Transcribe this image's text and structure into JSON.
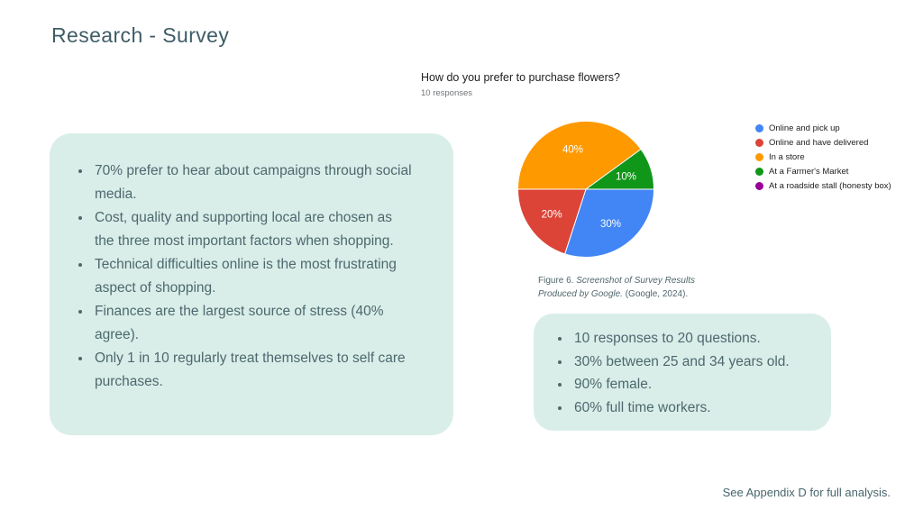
{
  "slide": {
    "title": "Research - Survey",
    "footer": "See Appendix D for full analysis."
  },
  "chart": {
    "title": "How do you prefer to purchase flowers?",
    "subtitle": "10 responses",
    "caption_prefix": "Figure 6. ",
    "caption_italic": "Screenshot of Survey Results Produced by Google.",
    "caption_suffix": " (Google, 2024)."
  },
  "chart_data": {
    "type": "pie",
    "title": "How do you prefer to purchase flowers?",
    "subtitle": "10 responses",
    "labels": [
      "Online and pick up",
      "Online and have delivered",
      "In a store",
      "At a Farmer's Market",
      "At a roadside stall (honesty box)"
    ],
    "values": [
      30,
      20,
      40,
      10,
      0
    ],
    "slice_labels": [
      "30%",
      "20%",
      "40%",
      "10%",
      ""
    ],
    "colors": [
      "#4285f4",
      "#db4437",
      "#ff9900",
      "#109618",
      "#990099"
    ],
    "start_angle_deg": 90,
    "direction": "clockwise",
    "legend_position": "right"
  },
  "left_box": {
    "bullets": [
      "70% prefer to hear about campaigns through social media.",
      "Cost, quality and supporting local are chosen as the three most important factors when shopping.",
      "Technical difficulties online is the most frustrating aspect of shopping.",
      "Finances are the largest source of stress (40% agree).",
      "Only 1 in 10 regularly treat themselves to self care purchases."
    ]
  },
  "right_box": {
    "bullets": [
      "10 responses to 20 questions.",
      "30% between 25 and 34 years old.",
      "90% female.",
      "60% full time workers."
    ]
  },
  "theme": {
    "title_color": "#3e5d66",
    "body_text_color": "#4d686e",
    "box_background": "#d9eee9",
    "chart_title_color": "#202124",
    "chart_subtitle_color": "#70757a",
    "pie_label_color": "#ffffff"
  }
}
